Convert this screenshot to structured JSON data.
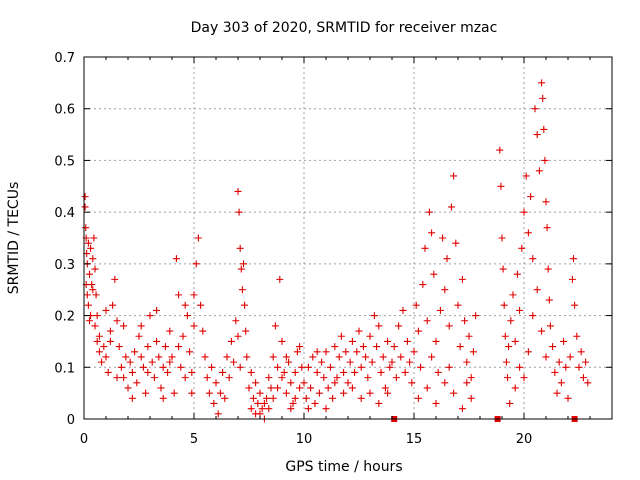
{
  "chart_data": {
    "type": "scatter",
    "title": "Day 303 of 2020, SRMTID for receiver mzac",
    "xlabel": "GPS time / hours",
    "ylabel": "SRMTID / TECUs",
    "xlim": [
      0,
      24
    ],
    "ylim": [
      0,
      0.7
    ],
    "x_ticks": [
      0,
      5,
      10,
      15,
      20
    ],
    "x_tick_labels": [
      "0",
      "5",
      "10",
      "15",
      "20"
    ],
    "y_ticks": [
      0,
      0.1,
      0.2,
      0.3,
      0.4,
      0.5,
      0.6,
      0.7
    ],
    "y_tick_labels": [
      "0",
      "0.1",
      "0.2",
      "0.3",
      "0.4",
      "0.5",
      "0.6",
      "0.7"
    ],
    "grid": true,
    "marker": "+",
    "color": "#e00000",
    "series": [
      {
        "name": "SRMTID",
        "points": [
          [
            0.05,
            0.43
          ],
          [
            0.05,
            0.41
          ],
          [
            0.08,
            0.37
          ],
          [
            0.1,
            0.35
          ],
          [
            0.12,
            0.32
          ],
          [
            0.15,
            0.3
          ],
          [
            0.2,
            0.34
          ],
          [
            0.25,
            0.28
          ],
          [
            0.3,
            0.33
          ],
          [
            0.35,
            0.26
          ],
          [
            0.4,
            0.31
          ],
          [
            0.45,
            0.35
          ],
          [
            0.5,
            0.29
          ],
          [
            0.55,
            0.24
          ],
          [
            0.2,
            0.22
          ],
          [
            0.3,
            0.2
          ],
          [
            0.4,
            0.25
          ],
          [
            0.5,
            0.18
          ],
          [
            0.6,
            0.2
          ],
          [
            0.7,
            0.16
          ],
          [
            0.1,
            0.26
          ],
          [
            0.15,
            0.24
          ],
          [
            0.25,
            0.19
          ],
          [
            0.6,
            0.15
          ],
          [
            0.7,
            0.13
          ],
          [
            0.8,
            0.11
          ],
          [
            0.9,
            0.14
          ],
          [
            1.0,
            0.12
          ],
          [
            1.1,
            0.09
          ],
          [
            1.2,
            0.17
          ],
          [
            1.3,
            0.22
          ],
          [
            1.4,
            0.27
          ],
          [
            1.5,
            0.19
          ],
          [
            1.6,
            0.14
          ],
          [
            1.7,
            0.1
          ],
          [
            1.8,
            0.08
          ],
          [
            1.9,
            0.12
          ],
          [
            2.0,
            0.06
          ],
          [
            2.1,
            0.11
          ],
          [
            2.2,
            0.09
          ],
          [
            2.3,
            0.13
          ],
          [
            2.4,
            0.07
          ],
          [
            2.5,
            0.16
          ],
          [
            2.6,
            0.12
          ],
          [
            2.7,
            0.1
          ],
          [
            2.8,
            0.05
          ],
          [
            2.9,
            0.14
          ],
          [
            3.0,
            0.2
          ],
          [
            3.1,
            0.11
          ],
          [
            3.2,
            0.08
          ],
          [
            3.3,
            0.15
          ],
          [
            3.4,
            0.12
          ],
          [
            3.5,
            0.06
          ],
          [
            3.6,
            0.1
          ],
          [
            3.7,
            0.14
          ],
          [
            3.8,
            0.09
          ],
          [
            3.9,
            0.17
          ],
          [
            4.0,
            0.12
          ],
          [
            4.1,
            0.05
          ],
          [
            4.2,
            0.31
          ],
          [
            4.3,
            0.24
          ],
          [
            4.4,
            0.1
          ],
          [
            4.5,
            0.16
          ],
          [
            4.6,
            0.08
          ],
          [
            4.7,
            0.2
          ],
          [
            4.8,
            0.13
          ],
          [
            4.9,
            0.09
          ],
          [
            5.0,
            0.18
          ],
          [
            1.0,
            0.21
          ],
          [
            1.2,
            0.15
          ],
          [
            1.5,
            0.08
          ],
          [
            1.8,
            0.18
          ],
          [
            2.2,
            0.04
          ],
          [
            2.6,
            0.18
          ],
          [
            2.9,
            0.09
          ],
          [
            3.3,
            0.21
          ],
          [
            3.6,
            0.04
          ],
          [
            3.9,
            0.11
          ],
          [
            4.3,
            0.14
          ],
          [
            4.6,
            0.22
          ],
          [
            4.9,
            0.05
          ],
          [
            5.0,
            0.24
          ],
          [
            5.1,
            0.3
          ],
          [
            5.2,
            0.35
          ],
          [
            5.3,
            0.22
          ],
          [
            5.4,
            0.17
          ],
          [
            5.5,
            0.12
          ],
          [
            5.6,
            0.08
          ],
          [
            5.7,
            0.05
          ],
          [
            5.8,
            0.1
          ],
          [
            5.9,
            0.03
          ],
          [
            6.0,
            0.07
          ],
          [
            6.1,
            0.01
          ],
          [
            6.2,
            0.05
          ],
          [
            6.3,
            0.09
          ],
          [
            6.4,
            0.04
          ],
          [
            6.5,
            0.12
          ],
          [
            6.6,
            0.08
          ],
          [
            6.7,
            0.15
          ],
          [
            6.8,
            0.11
          ],
          [
            6.9,
            0.19
          ],
          [
            7.0,
            0.44
          ],
          [
            7.05,
            0.4
          ],
          [
            7.1,
            0.33
          ],
          [
            7.15,
            0.29
          ],
          [
            7.2,
            0.25
          ],
          [
            7.25,
            0.3
          ],
          [
            7.3,
            0.22
          ],
          [
            7.35,
            0.17
          ],
          [
            7.4,
            0.12
          ],
          [
            7.0,
            0.16
          ],
          [
            7.1,
            0.1
          ],
          [
            7.5,
            0.06
          ],
          [
            7.6,
            0.02
          ],
          [
            7.7,
            0.04
          ],
          [
            7.8,
            0.01
          ],
          [
            7.9,
            0.03
          ],
          [
            8.0,
            0.05
          ],
          [
            8.1,
            0.02
          ],
          [
            8.2,
            0.0
          ],
          [
            8.3,
            0.04
          ],
          [
            8.4,
            0.08
          ],
          [
            8.5,
            0.06
          ],
          [
            8.6,
            0.12
          ],
          [
            8.7,
            0.18
          ],
          [
            8.8,
            0.1
          ],
          [
            8.9,
            0.27
          ],
          [
            9.0,
            0.15
          ],
          [
            9.1,
            0.09
          ],
          [
            9.2,
            0.05
          ],
          [
            9.3,
            0.11
          ],
          [
            9.4,
            0.07
          ],
          [
            9.5,
            0.03
          ],
          [
            9.6,
            0.09
          ],
          [
            9.7,
            0.13
          ],
          [
            9.8,
            0.06
          ],
          [
            9.9,
            0.1
          ],
          [
            7.6,
            0.09
          ],
          [
            7.8,
            0.07
          ],
          [
            8.0,
            0.01
          ],
          [
            8.2,
            0.03
          ],
          [
            8.4,
            0.02
          ],
          [
            8.6,
            0.04
          ],
          [
            8.8,
            0.06
          ],
          [
            9.0,
            0.08
          ],
          [
            9.2,
            0.12
          ],
          [
            9.4,
            0.02
          ],
          [
            9.6,
            0.04
          ],
          [
            9.8,
            0.14
          ],
          [
            10.0,
            0.07
          ],
          [
            10.1,
            0.04
          ],
          [
            10.2,
            0.1
          ],
          [
            10.3,
            0.06
          ],
          [
            10.4,
            0.12
          ],
          [
            10.5,
            0.03
          ],
          [
            10.6,
            0.09
          ],
          [
            10.7,
            0.05
          ],
          [
            10.8,
            0.11
          ],
          [
            10.9,
            0.08
          ],
          [
            11.0,
            0.13
          ],
          [
            11.1,
            0.06
          ],
          [
            11.2,
            0.1
          ],
          [
            11.3,
            0.04
          ],
          [
            11.4,
            0.14
          ],
          [
            11.5,
            0.08
          ],
          [
            11.6,
            0.12
          ],
          [
            11.7,
            0.16
          ],
          [
            11.8,
            0.09
          ],
          [
            11.9,
            0.13
          ],
          [
            12.0,
            0.07
          ],
          [
            12.1,
            0.11
          ],
          [
            12.2,
            0.15
          ],
          [
            12.3,
            0.09
          ],
          [
            12.4,
            0.13
          ],
          [
            12.5,
            0.17
          ],
          [
            12.6,
            0.1
          ],
          [
            12.7,
            0.14
          ],
          [
            12.8,
            0.12
          ],
          [
            12.9,
            0.08
          ],
          [
            13.0,
            0.16
          ],
          [
            13.1,
            0.11
          ],
          [
            13.2,
            0.2
          ],
          [
            13.3,
            0.14
          ],
          [
            13.4,
            0.18
          ],
          [
            13.5,
            0.09
          ],
          [
            13.6,
            0.12
          ],
          [
            13.7,
            0.06
          ],
          [
            13.8,
            0.15
          ],
          [
            13.9,
            0.1
          ],
          [
            10.2,
            0.02
          ],
          [
            10.6,
            0.13
          ],
          [
            11.0,
            0.02
          ],
          [
            11.4,
            0.07
          ],
          [
            11.8,
            0.05
          ],
          [
            12.2,
            0.06
          ],
          [
            12.6,
            0.04
          ],
          [
            13.0,
            0.05
          ],
          [
            13.4,
            0.03
          ],
          [
            13.8,
            0.05
          ],
          [
            14.0,
            0.11
          ],
          [
            14.1,
            0.14
          ],
          [
            14.2,
            0.08
          ],
          [
            14.3,
            0.18
          ],
          [
            14.4,
            0.12
          ],
          [
            14.5,
            0.21
          ],
          [
            14.6,
            0.09
          ],
          [
            14.7,
            0.15
          ],
          [
            14.8,
            0.11
          ],
          [
            14.9,
            0.07
          ],
          [
            15.0,
            0.13
          ],
          [
            15.1,
            0.22
          ],
          [
            15.2,
            0.17
          ],
          [
            15.3,
            0.1
          ],
          [
            15.4,
            0.26
          ],
          [
            15.5,
            0.33
          ],
          [
            15.6,
            0.19
          ],
          [
            15.7,
            0.4
          ],
          [
            15.8,
            0.36
          ],
          [
            15.9,
            0.28
          ],
          [
            16.0,
            0.15
          ],
          [
            16.1,
            0.09
          ],
          [
            16.2,
            0.21
          ],
          [
            16.3,
            0.35
          ],
          [
            16.4,
            0.25
          ],
          [
            16.5,
            0.31
          ],
          [
            16.6,
            0.18
          ],
          [
            16.7,
            0.41
          ],
          [
            16.8,
            0.47
          ],
          [
            16.9,
            0.34
          ],
          [
            17.0,
            0.22
          ],
          [
            17.1,
            0.14
          ],
          [
            17.2,
            0.27
          ],
          [
            17.3,
            0.19
          ],
          [
            17.4,
            0.11
          ],
          [
            17.5,
            0.16
          ],
          [
            17.6,
            0.08
          ],
          [
            17.7,
            0.13
          ],
          [
            17.8,
            0.2
          ],
          [
            15.2,
            0.04
          ],
          [
            15.6,
            0.06
          ],
          [
            16.0,
            0.03
          ],
          [
            16.4,
            0.07
          ],
          [
            16.8,
            0.05
          ],
          [
            17.2,
            0.02
          ],
          [
            17.6,
            0.04
          ],
          [
            15.8,
            0.12
          ],
          [
            16.6,
            0.1
          ],
          [
            17.4,
            0.07
          ],
          [
            18.9,
            0.52
          ],
          [
            18.95,
            0.45
          ],
          [
            19.0,
            0.35
          ],
          [
            19.05,
            0.29
          ],
          [
            19.1,
            0.22
          ],
          [
            19.15,
            0.16
          ],
          [
            19.2,
            0.11
          ],
          [
            19.25,
            0.08
          ],
          [
            19.3,
            0.14
          ],
          [
            19.35,
            0.03
          ],
          [
            19.4,
            0.19
          ],
          [
            19.5,
            0.24
          ],
          [
            19.6,
            0.15
          ],
          [
            19.7,
            0.28
          ],
          [
            19.8,
            0.21
          ],
          [
            19.9,
            0.33
          ],
          [
            20.0,
            0.4
          ],
          [
            20.1,
            0.47
          ],
          [
            20.2,
            0.36
          ],
          [
            20.3,
            0.43
          ],
          [
            20.4,
            0.31
          ],
          [
            20.5,
            0.6
          ],
          [
            20.6,
            0.55
          ],
          [
            20.7,
            0.48
          ],
          [
            20.8,
            0.65
          ],
          [
            20.85,
            0.62
          ],
          [
            20.9,
            0.56
          ],
          [
            20.95,
            0.5
          ],
          [
            21.0,
            0.42
          ],
          [
            21.05,
            0.37
          ],
          [
            21.1,
            0.29
          ],
          [
            21.15,
            0.23
          ],
          [
            21.2,
            0.18
          ],
          [
            19.6,
            0.06
          ],
          [
            19.8,
            0.1
          ],
          [
            20.0,
            0.08
          ],
          [
            20.2,
            0.13
          ],
          [
            20.4,
            0.2
          ],
          [
            20.6,
            0.25
          ],
          [
            20.8,
            0.17
          ],
          [
            21.0,
            0.12
          ],
          [
            21.3,
            0.14
          ],
          [
            21.4,
            0.09
          ],
          [
            21.5,
            0.05
          ],
          [
            21.6,
            0.11
          ],
          [
            21.7,
            0.07
          ],
          [
            21.8,
            0.15
          ],
          [
            21.9,
            0.1
          ],
          [
            22.0,
            0.04
          ],
          [
            22.1,
            0.12
          ],
          [
            22.2,
            0.27
          ],
          [
            22.25,
            0.31
          ],
          [
            22.3,
            0.22
          ],
          [
            22.4,
            0.16
          ],
          [
            22.5,
            0.1
          ],
          [
            22.6,
            0.13
          ],
          [
            22.7,
            0.08
          ],
          [
            22.8,
            0.11
          ],
          [
            22.9,
            0.07
          ]
        ],
        "baseline_squares": [
          14.1,
          18.8,
          22.3
        ]
      }
    ]
  }
}
